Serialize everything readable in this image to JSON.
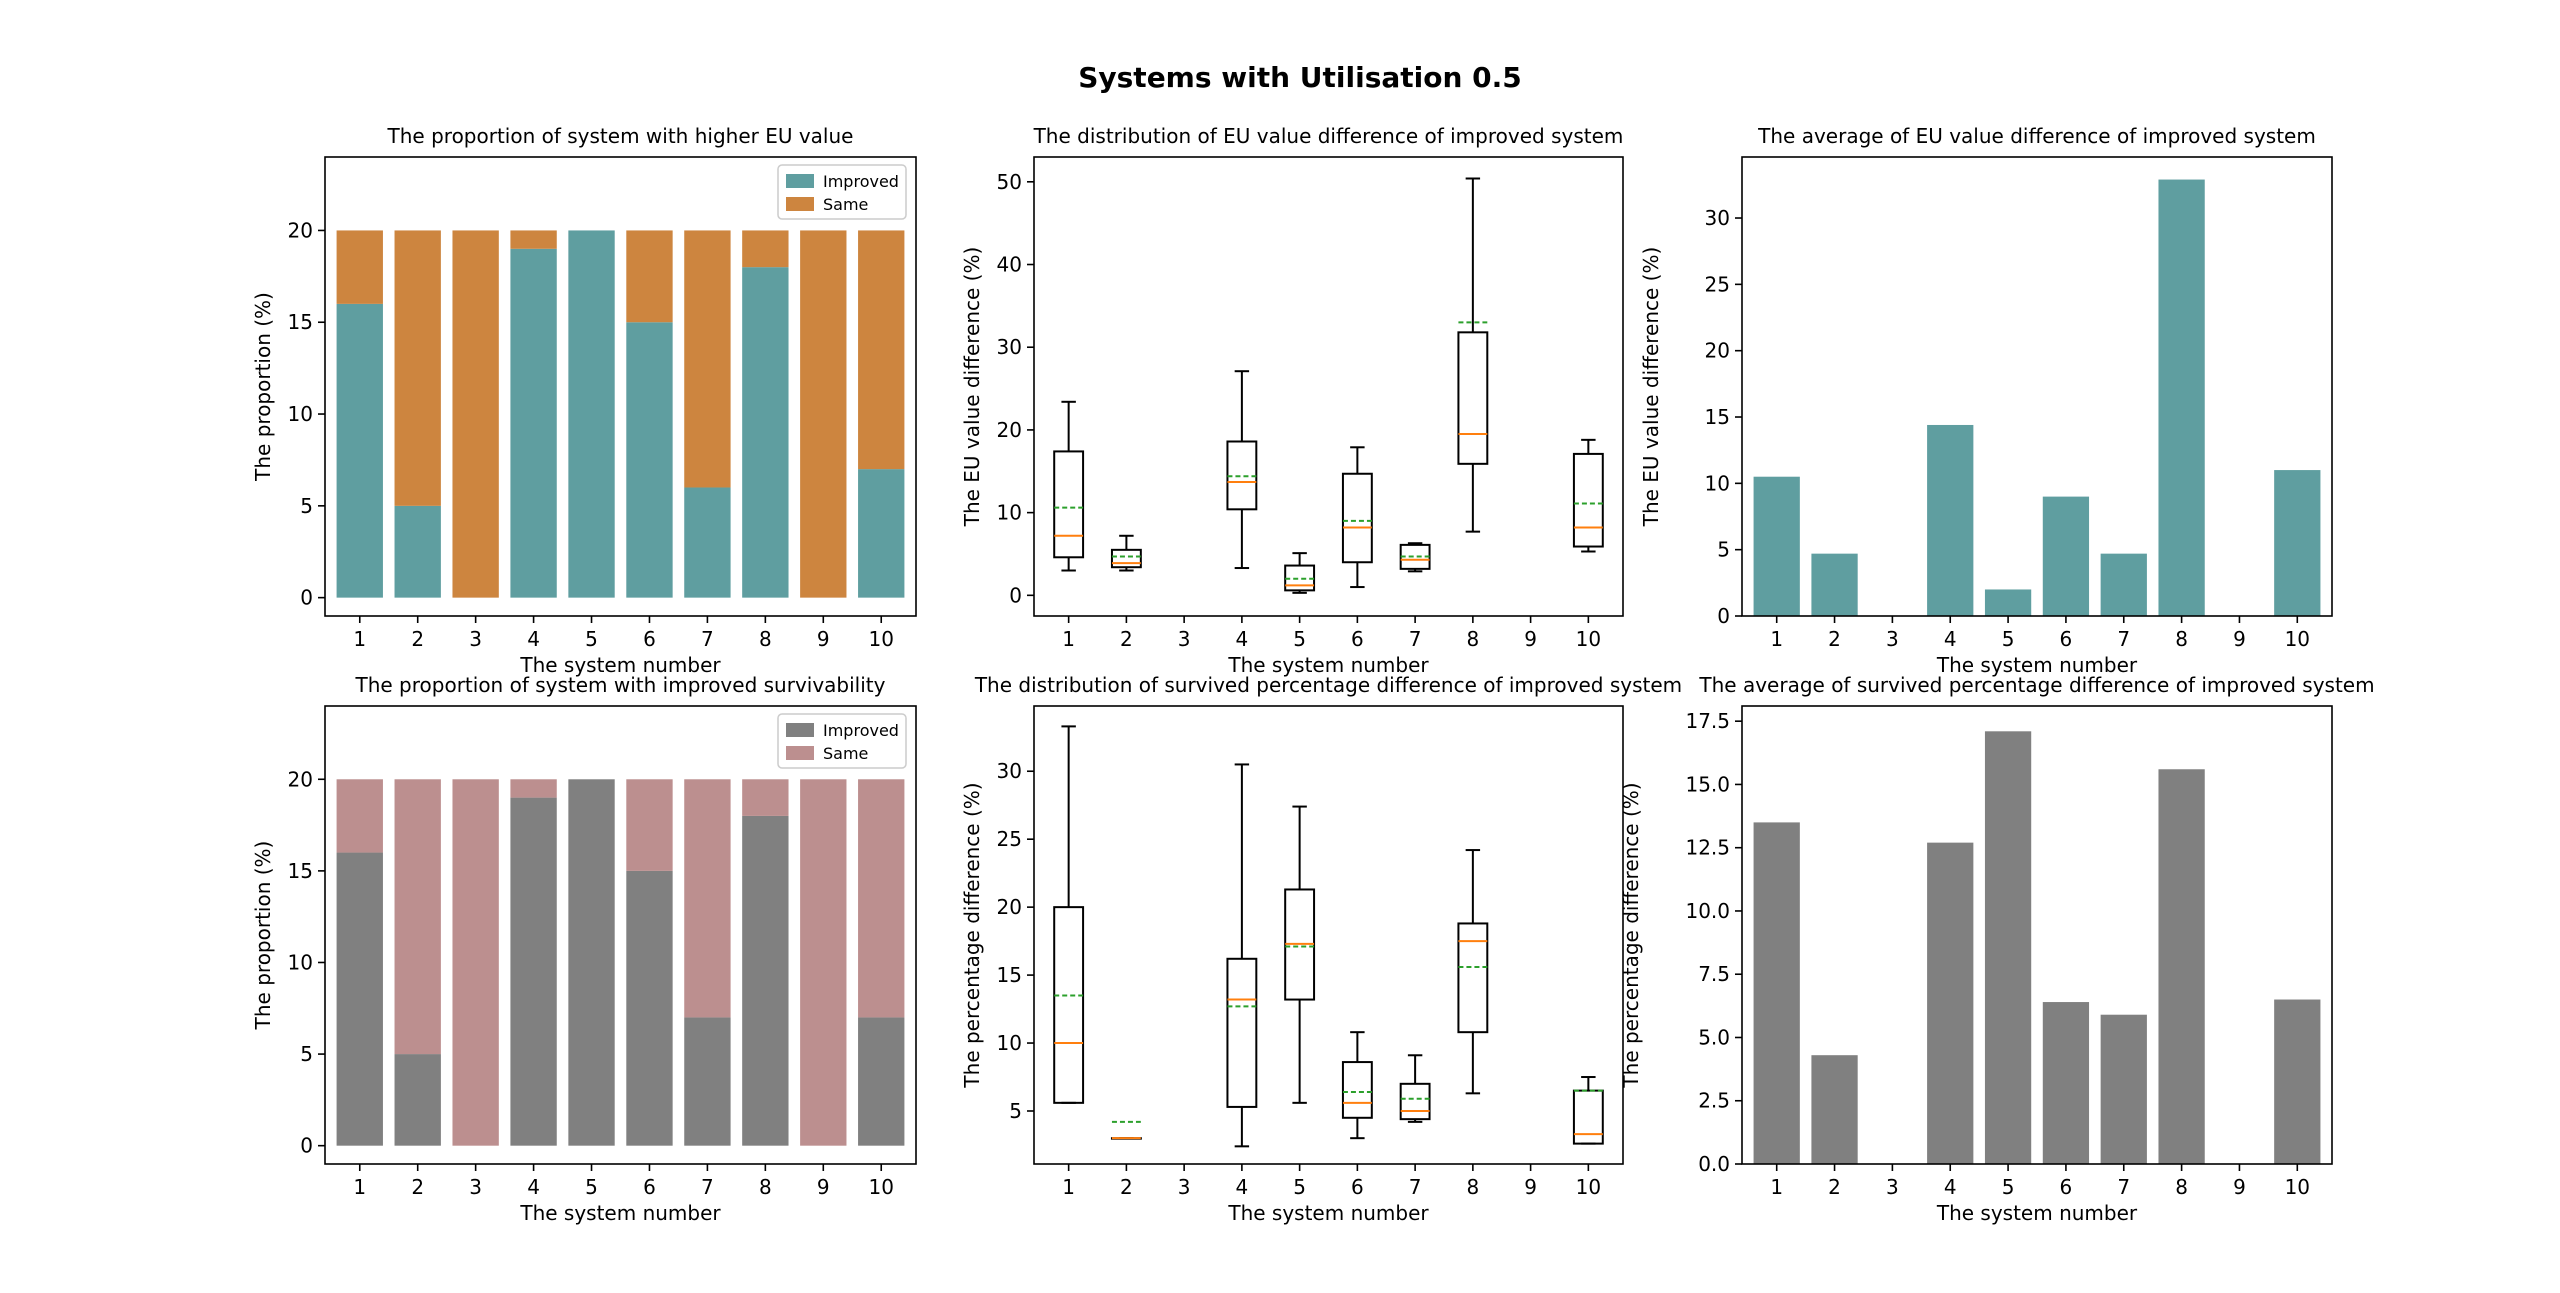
{
  "suptitle": "Systems with Utilisation 0.5",
  "colors": {
    "teal": "#5f9ea0",
    "orange": "#cd853f",
    "gray": "#808080",
    "rosy": "#bc8f8f",
    "median": "#ff7f0e",
    "mean": "#2ca02c",
    "axis": "#000000"
  },
  "chart_data": [
    {
      "type": "bar",
      "stacked": true,
      "title": "The proportion of system with higher EU value",
      "xlabel": "The system number",
      "ylabel": "The proportion (%)",
      "categories": [
        "1",
        "2",
        "3",
        "4",
        "5",
        "6",
        "7",
        "8",
        "9",
        "10"
      ],
      "ylim": [
        -1,
        24
      ],
      "yticks": [
        0,
        5,
        10,
        15,
        20
      ],
      "ytick_labels": [
        "0",
        "5",
        "10",
        "15",
        "20"
      ],
      "legend": "top-right",
      "series": [
        {
          "name": "Improved",
          "color": "teal",
          "values": [
            16,
            5,
            0,
            19,
            20,
            15,
            6,
            18,
            0,
            7
          ]
        },
        {
          "name": "Same",
          "color": "orange",
          "values": [
            4,
            15,
            20,
            1,
            0,
            5,
            14,
            2,
            20,
            13
          ]
        }
      ]
    },
    {
      "type": "box",
      "title": "The distribution of EU value difference of improved system",
      "xlabel": "The system number",
      "ylabel": "The EU value difference (%)",
      "categories": [
        "1",
        "2",
        "3",
        "4",
        "5",
        "6",
        "7",
        "8",
        "9",
        "10"
      ],
      "ylim": [
        -2.5,
        53
      ],
      "yticks": [
        0,
        10,
        20,
        30,
        40,
        50
      ],
      "ytick_labels": [
        "0",
        "10",
        "20",
        "30",
        "40",
        "50"
      ],
      "boxes": [
        {
          "x": 1,
          "whislo": 3,
          "q1": 4.6,
          "med": 7.2,
          "q3": 17.4,
          "whishi": 23.4,
          "mean": 10.6
        },
        {
          "x": 2,
          "whislo": 3.0,
          "q1": 3.4,
          "med": 3.9,
          "q3": 5.5,
          "whishi": 7.2,
          "mean": 4.7
        },
        {
          "x": 4,
          "whislo": 3.3,
          "q1": 10.4,
          "med": 13.7,
          "q3": 18.6,
          "whishi": 27.1,
          "mean": 14.4
        },
        {
          "x": 5,
          "whislo": 0.3,
          "q1": 0.6,
          "med": 1.2,
          "q3": 3.6,
          "whishi": 5.1,
          "mean": 2.0
        },
        {
          "x": 6,
          "whislo": 1.0,
          "q1": 4.0,
          "med": 8.2,
          "q3": 14.7,
          "whishi": 17.9,
          "mean": 9.0
        },
        {
          "x": 7,
          "whislo": 2.9,
          "q1": 3.2,
          "med": 4.3,
          "q3": 6.1,
          "whishi": 6.3,
          "mean": 4.7
        },
        {
          "x": 8,
          "whislo": 7.7,
          "q1": 15.9,
          "med": 19.5,
          "q3": 31.8,
          "whishi": 50.4,
          "mean": 33.0
        },
        {
          "x": 10,
          "whislo": 5.3,
          "q1": 5.9,
          "med": 8.2,
          "q3": 17.1,
          "whishi": 18.8,
          "mean": 11.1
        }
      ]
    },
    {
      "type": "bar",
      "title": "The average of EU value difference of improved system",
      "xlabel": "The system number",
      "ylabel": "The EU value difference (%)",
      "categories": [
        "1",
        "2",
        "3",
        "4",
        "5",
        "6",
        "7",
        "8",
        "9",
        "10"
      ],
      "ylim": [
        0,
        34.6
      ],
      "yticks": [
        0,
        5,
        10,
        15,
        20,
        25,
        30
      ],
      "ytick_labels": [
        "0",
        "5",
        "10",
        "15",
        "20",
        "25",
        "30"
      ],
      "series": [
        {
          "name": "Average",
          "color": "teal",
          "values": [
            10.5,
            4.7,
            0,
            14.4,
            2.0,
            9.0,
            4.7,
            32.9,
            0,
            11.0
          ]
        }
      ]
    },
    {
      "type": "bar",
      "stacked": true,
      "title": "The proportion of system with improved survivability",
      "xlabel": "The system number",
      "ylabel": "The proportion (%)",
      "categories": [
        "1",
        "2",
        "3",
        "4",
        "5",
        "6",
        "7",
        "8",
        "9",
        "10"
      ],
      "ylim": [
        -1,
        24
      ],
      "yticks": [
        0,
        5,
        10,
        15,
        20
      ],
      "ytick_labels": [
        "0",
        "5",
        "10",
        "15",
        "20"
      ],
      "legend": "top-right",
      "series": [
        {
          "name": "Improved",
          "color": "gray",
          "values": [
            16,
            5,
            0,
            19,
            20,
            15,
            7,
            18,
            0,
            7
          ]
        },
        {
          "name": "Same",
          "color": "rosy",
          "values": [
            4,
            15,
            20,
            1,
            0,
            5,
            13,
            2,
            20,
            13
          ]
        }
      ]
    },
    {
      "type": "box",
      "title": "The distribution of survived percentage difference of improved system",
      "xlabel": "The system number",
      "ylabel": "The percentage difference (%)",
      "categories": [
        "1",
        "2",
        "3",
        "4",
        "5",
        "6",
        "7",
        "8",
        "9",
        "10"
      ],
      "ylim": [
        1.1,
        34.8
      ],
      "yticks": [
        5,
        10,
        15,
        20,
        25,
        30
      ],
      "ytick_labels": [
        "5",
        "10",
        "15",
        "20",
        "25",
        "30"
      ],
      "boxes": [
        {
          "x": 1,
          "whislo": 5.6,
          "q1": 5.6,
          "med": 10.0,
          "q3": 20.0,
          "whishi": 33.3,
          "mean": 13.5
        },
        {
          "x": 2,
          "whislo": 3.0,
          "q1": 3.0,
          "med": 3.0,
          "q3": 3.0,
          "whishi": 3.0,
          "mean": 4.2
        },
        {
          "x": 4,
          "whislo": 2.4,
          "q1": 5.3,
          "med": 13.2,
          "q3": 16.2,
          "whishi": 30.5,
          "mean": 12.7
        },
        {
          "x": 5,
          "whislo": 5.6,
          "q1": 13.2,
          "med": 17.3,
          "q3": 21.3,
          "whishi": 27.4,
          "mean": 17.1
        },
        {
          "x": 6,
          "whislo": 3.0,
          "q1": 4.5,
          "med": 5.6,
          "q3": 8.6,
          "whishi": 10.8,
          "mean": 6.4
        },
        {
          "x": 7,
          "whislo": 4.2,
          "q1": 4.4,
          "med": 5.0,
          "q3": 7.0,
          "whishi": 9.1,
          "mean": 5.9
        },
        {
          "x": 8,
          "whislo": 6.3,
          "q1": 10.8,
          "med": 17.5,
          "q3": 18.8,
          "whishi": 24.2,
          "mean": 15.6
        },
        {
          "x": 10,
          "whislo": 2.6,
          "q1": 2.6,
          "med": 3.3,
          "q3": 6.5,
          "whishi": 7.5,
          "mean": 6.5
        }
      ]
    },
    {
      "type": "bar",
      "title": "The average of survived percentage difference of improved system",
      "xlabel": "The system number",
      "ylabel": "The percentage difference (%)",
      "categories": [
        "1",
        "2",
        "3",
        "4",
        "5",
        "6",
        "7",
        "8",
        "9",
        "10"
      ],
      "ylim": [
        0,
        18.1
      ],
      "yticks": [
        0,
        2.5,
        5,
        7.5,
        10,
        12.5,
        15,
        17.5
      ],
      "ytick_labels": [
        "0.0",
        "2.5",
        "5.0",
        "7.5",
        "10.0",
        "12.5",
        "15.0",
        "17.5"
      ],
      "series": [
        {
          "name": "Average",
          "color": "gray",
          "values": [
            13.5,
            4.3,
            0,
            12.7,
            17.1,
            6.4,
            5.9,
            15.6,
            0,
            6.5
          ]
        }
      ]
    }
  ]
}
